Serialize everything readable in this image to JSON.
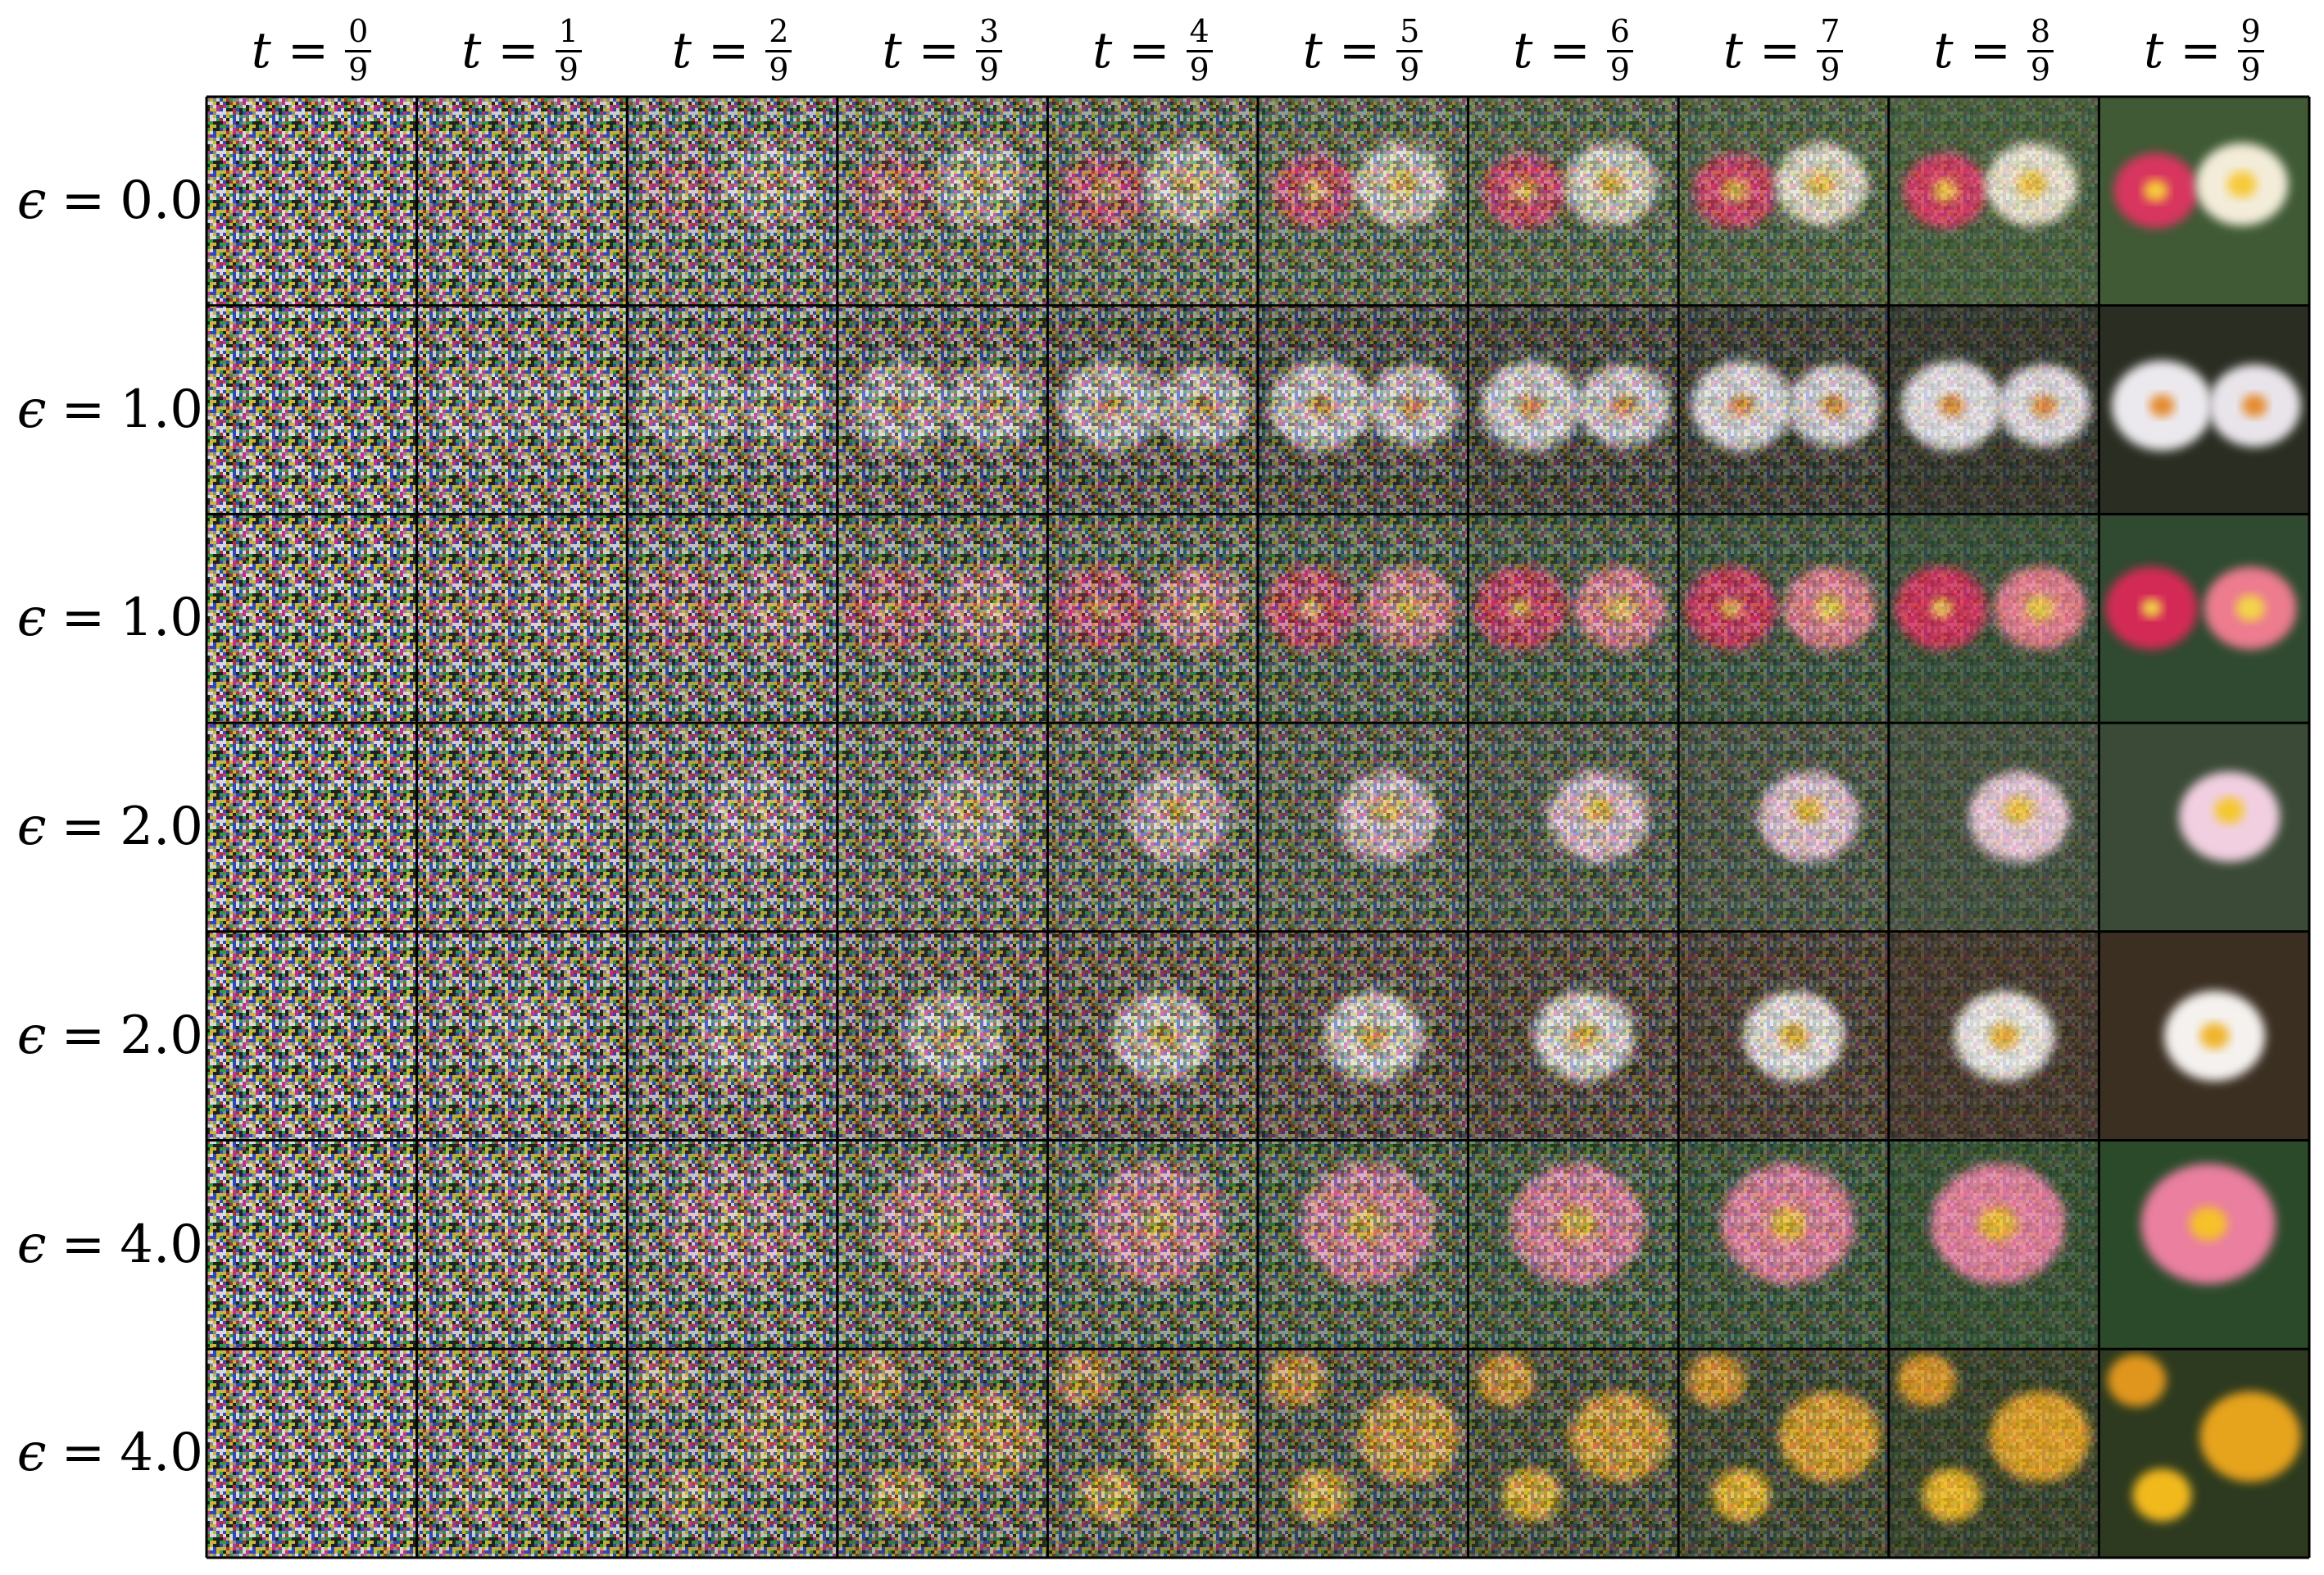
{
  "figure": {
    "column_header": {
      "variable": "t",
      "equals": "=",
      "fractions": [
        {
          "numerator": "0",
          "denominator": "9"
        },
        {
          "numerator": "1",
          "denominator": "9"
        },
        {
          "numerator": "2",
          "denominator": "9"
        },
        {
          "numerator": "3",
          "denominator": "9"
        },
        {
          "numerator": "4",
          "denominator": "9"
        },
        {
          "numerator": "5",
          "denominator": "9"
        },
        {
          "numerator": "6",
          "denominator": "9"
        },
        {
          "numerator": "7",
          "denominator": "9"
        },
        {
          "numerator": "8",
          "denominator": "9"
        },
        {
          "numerator": "9",
          "denominator": "9"
        }
      ]
    },
    "row_header": {
      "variable": "ϵ",
      "equals": "=",
      "values": [
        "0.0",
        "1.0",
        "1.0",
        "2.0",
        "2.0",
        "4.0",
        "4.0"
      ]
    },
    "rows": [
      {
        "subject": "pink and white water lilies",
        "colors": {
          "petal": "#d8365f",
          "petal2": "#f3ecd8",
          "center": "#f7c93a",
          "bg": "#3f5a35"
        }
      },
      {
        "subject": "white flowers with orange centers",
        "colors": {
          "petal": "#ece9ee",
          "petal2": "#e9e4ea",
          "center": "#e58a2e",
          "bg": "#2a2e22"
        }
      },
      {
        "subject": "red and pink lily flowers",
        "colors": {
          "petal": "#d32c55",
          "petal2": "#ec7b8e",
          "center": "#f4d44a",
          "bg": "#2f4a30"
        }
      },
      {
        "subject": "pale pink water lily",
        "colors": {
          "petal": "#f1cfe0",
          "petal2": "#e5dfe6",
          "center": "#f4c82e",
          "bg": "#3a4a36"
        }
      },
      {
        "subject": "white flower with yellow center",
        "colors": {
          "petal": "#f4f1ee",
          "petal2": "#c8b9a8",
          "center": "#f0b52d",
          "bg": "#3b2f22"
        }
      },
      {
        "subject": "pink water lily",
        "colors": {
          "petal": "#ea7fa0",
          "petal2": "#fbeef2",
          "center": "#f6c12c",
          "bg": "#2b4a2a"
        }
      },
      {
        "subject": "yellow marigolds",
        "colors": {
          "petal": "#f2b91d",
          "petal2": "#e6a31a",
          "center": "#e0961b",
          "bg": "#2d3a1f"
        }
      }
    ],
    "noise_palette": [
      "#c0308a",
      "#2f9a45",
      "#3348b8",
      "#c9b53c",
      "#8a8a8a",
      "#d8d8d8",
      "#202020",
      "#a23838"
    ]
  }
}
